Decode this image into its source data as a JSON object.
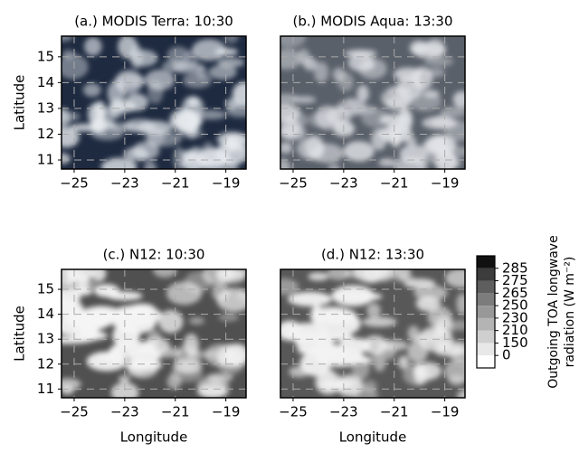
{
  "chart_data": [
    {
      "type": "image",
      "title": "(a.) MODIS Terra: 10:30",
      "ylabel": "Latitude",
      "xlim": [
        -25.5,
        -18.2
      ],
      "ylim": [
        10.65,
        15.8
      ],
      "xticks": [
        {
          "value": -25,
          "label": "−25"
        },
        {
          "value": -23,
          "label": "−23"
        },
        {
          "value": -21,
          "label": "−21"
        },
        {
          "value": -19,
          "label": "−19"
        }
      ],
      "yticks": [
        11,
        12,
        13,
        14,
        15
      ],
      "grid": true,
      "background": "#1e2a40",
      "cloud": "#e8ecf0"
    },
    {
      "type": "image",
      "title": "(b.) MODIS Aqua: 13:30",
      "xlim": [
        -25.5,
        -18.2
      ],
      "ylim": [
        10.65,
        15.8
      ],
      "xticks": [
        {
          "value": -25,
          "label": "−25"
        },
        {
          "value": -23,
          "label": "−23"
        },
        {
          "value": -21,
          "label": "−21"
        },
        {
          "value": -19,
          "label": "−19"
        }
      ],
      "yticks": [
        11,
        12,
        13,
        14,
        15
      ],
      "grid": true,
      "background": "#5a606a",
      "cloud": "#e4e6ea"
    },
    {
      "type": "image",
      "title": "(c.) N12: 10:30",
      "ylabel": "Latitude",
      "xlabel": "Longitude",
      "xlim": [
        -25.5,
        -18.2
      ],
      "ylim": [
        10.65,
        15.8
      ],
      "xticks": [
        {
          "value": -25,
          "label": "−25"
        },
        {
          "value": -23,
          "label": "−23"
        },
        {
          "value": -21,
          "label": "−21"
        },
        {
          "value": -19,
          "label": "−19"
        }
      ],
      "yticks": [
        11,
        12,
        13,
        14,
        15
      ],
      "grid": true,
      "background": "#505050",
      "cloud": "#f4f4f4"
    },
    {
      "type": "image",
      "title": "(d.) N12: 13:30",
      "xlabel": "Longitude",
      "xlim": [
        -25.5,
        -18.2
      ],
      "ylim": [
        10.65,
        15.8
      ],
      "xticks": [
        {
          "value": -25,
          "label": "−25"
        },
        {
          "value": -23,
          "label": "−23"
        },
        {
          "value": -21,
          "label": "−21"
        },
        {
          "value": -19,
          "label": "−19"
        }
      ],
      "yticks": [
        11,
        12,
        13,
        14,
        15
      ],
      "grid": true,
      "background": "#585858",
      "cloud": "#f2f2f2"
    }
  ],
  "colorbar": {
    "label_lines": [
      "Outgoing TOA longwave",
      "radiation (W m⁻²)"
    ],
    "ticks": [
      0,
      150,
      210,
      230,
      250,
      265,
      275,
      285
    ],
    "colors": [
      "#ffffff",
      "#e8e8e8",
      "#cfcfcf",
      "#b4b4b4",
      "#989898",
      "#7c7c7c",
      "#5e5e5e",
      "#3c3c3c",
      "#111111"
    ]
  }
}
